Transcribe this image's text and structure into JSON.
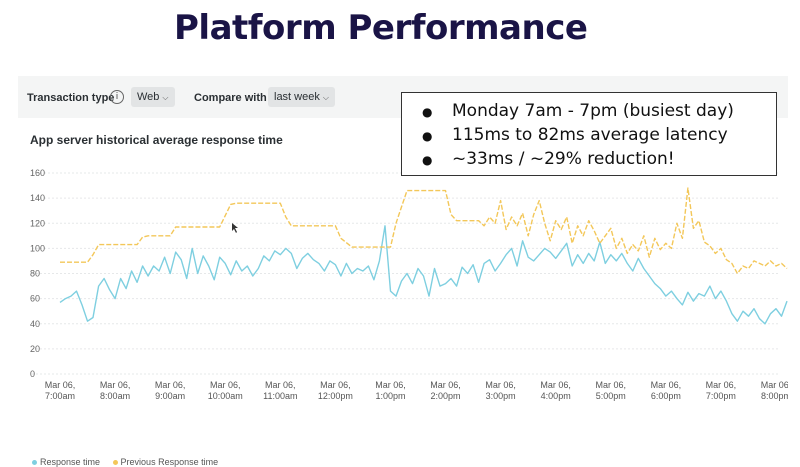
{
  "slide": {
    "title": "Platform Performance"
  },
  "toolbar": {
    "transaction_type_label": "Transaction type",
    "transaction_type_value": "Web",
    "compare_with_label": "Compare with",
    "compare_with_value": "last week"
  },
  "callout": {
    "bullets": [
      "Monday 7am - 7pm (busiest day)",
      "115ms to 82ms average latency",
      "~33ms / ~29% reduction!"
    ]
  },
  "colors": {
    "response": "#7ecfe0",
    "previous": "#f3c759",
    "title": "#1a1446"
  },
  "chart_data": {
    "type": "line",
    "title": "App server historical average response time",
    "ylim": [
      0,
      160
    ],
    "yticks": [
      0,
      20,
      40,
      60,
      80,
      100,
      120,
      140,
      160
    ],
    "xlim": [
      7.0,
      20.0
    ],
    "xticks": [
      {
        "x": 7,
        "line1": "Mar 06,",
        "line2": "7:00am"
      },
      {
        "x": 8,
        "line1": "Mar 06,",
        "line2": "8:00am"
      },
      {
        "x": 9,
        "line1": "Mar 06,",
        "line2": "9:00am"
      },
      {
        "x": 10,
        "line1": "Mar 06,",
        "line2": "10:00am"
      },
      {
        "x": 11,
        "line1": "Mar 06,",
        "line2": "11:00am"
      },
      {
        "x": 12,
        "line1": "Mar 06,",
        "line2": "12:00pm"
      },
      {
        "x": 13,
        "line1": "Mar 06,",
        "line2": "1:00pm"
      },
      {
        "x": 14,
        "line1": "Mar 06,",
        "line2": "2:00pm"
      },
      {
        "x": 15,
        "line1": "Mar 06,",
        "line2": "3:00pm"
      },
      {
        "x": 16,
        "line1": "Mar 06,",
        "line2": "4:00pm"
      },
      {
        "x": 17,
        "line1": "Mar 06,",
        "line2": "5:00pm"
      },
      {
        "x": 18,
        "line1": "Mar 06,",
        "line2": "6:00pm"
      },
      {
        "x": 19,
        "line1": "Mar 06,",
        "line2": "7:00pm"
      },
      {
        "x": 20,
        "line1": "Mar 06,",
        "line2": "8:00pm"
      }
    ],
    "grid": true,
    "legend_position": "bottom-left",
    "series": [
      {
        "name": "Response time",
        "points": [
          [
            7.0,
            57
          ],
          [
            7.1,
            60
          ],
          [
            7.2,
            62
          ],
          [
            7.3,
            66
          ],
          [
            7.4,
            55
          ],
          [
            7.5,
            42
          ],
          [
            7.6,
            45
          ],
          [
            7.7,
            70
          ],
          [
            7.8,
            76
          ],
          [
            7.9,
            67
          ],
          [
            8.0,
            60
          ],
          [
            8.1,
            76
          ],
          [
            8.2,
            68
          ],
          [
            8.3,
            82
          ],
          [
            8.4,
            73
          ],
          [
            8.5,
            86
          ],
          [
            8.6,
            78
          ],
          [
            8.7,
            86
          ],
          [
            8.8,
            82
          ],
          [
            8.9,
            93
          ],
          [
            9.0,
            80
          ],
          [
            9.1,
            97
          ],
          [
            9.2,
            91
          ],
          [
            9.3,
            76
          ],
          [
            9.4,
            100
          ],
          [
            9.5,
            80
          ],
          [
            9.6,
            94
          ],
          [
            9.7,
            86
          ],
          [
            9.8,
            75
          ],
          [
            9.9,
            93
          ],
          [
            10.0,
            88
          ],
          [
            10.1,
            79
          ],
          [
            10.2,
            90
          ],
          [
            10.3,
            82
          ],
          [
            10.4,
            86
          ],
          [
            10.5,
            78
          ],
          [
            10.6,
            84
          ],
          [
            10.7,
            94
          ],
          [
            10.8,
            90
          ],
          [
            10.9,
            98
          ],
          [
            11.0,
            95
          ],
          [
            11.1,
            100
          ],
          [
            11.2,
            96
          ],
          [
            11.3,
            84
          ],
          [
            11.4,
            92
          ],
          [
            11.5,
            96
          ],
          [
            11.6,
            91
          ],
          [
            11.7,
            88
          ],
          [
            11.8,
            82
          ],
          [
            11.9,
            90
          ],
          [
            12.0,
            87
          ],
          [
            12.1,
            78
          ],
          [
            12.2,
            88
          ],
          [
            12.3,
            80
          ],
          [
            12.4,
            84
          ],
          [
            12.5,
            82
          ],
          [
            12.6,
            86
          ],
          [
            12.7,
            75
          ],
          [
            12.8,
            90
          ],
          [
            12.9,
            118
          ],
          [
            13.0,
            66
          ],
          [
            13.1,
            62
          ],
          [
            13.2,
            74
          ],
          [
            13.3,
            80
          ],
          [
            13.4,
            72
          ],
          [
            13.5,
            84
          ],
          [
            13.6,
            78
          ],
          [
            13.7,
            62
          ],
          [
            13.8,
            84
          ],
          [
            13.9,
            70
          ],
          [
            14.0,
            72
          ],
          [
            14.1,
            76
          ],
          [
            14.2,
            70
          ],
          [
            14.3,
            85
          ],
          [
            14.4,
            80
          ],
          [
            14.5,
            87
          ],
          [
            14.6,
            73
          ],
          [
            14.7,
            88
          ],
          [
            14.8,
            91
          ],
          [
            14.9,
            82
          ],
          [
            15.0,
            88
          ],
          [
            15.1,
            95
          ],
          [
            15.2,
            100
          ],
          [
            15.3,
            86
          ],
          [
            15.4,
            106
          ],
          [
            15.5,
            93
          ],
          [
            15.6,
            90
          ],
          [
            15.7,
            95
          ],
          [
            15.8,
            100
          ],
          [
            15.9,
            97
          ],
          [
            16.0,
            92
          ],
          [
            16.1,
            98
          ],
          [
            16.2,
            104
          ],
          [
            16.3,
            86
          ],
          [
            16.4,
            95
          ],
          [
            16.5,
            88
          ],
          [
            16.6,
            96
          ],
          [
            16.7,
            90
          ],
          [
            16.8,
            105
          ],
          [
            16.9,
            88
          ],
          [
            17.0,
            95
          ],
          [
            17.1,
            90
          ],
          [
            17.2,
            96
          ],
          [
            17.3,
            88
          ],
          [
            17.4,
            82
          ],
          [
            17.5,
            92
          ],
          [
            17.6,
            84
          ],
          [
            17.7,
            78
          ],
          [
            17.8,
            72
          ],
          [
            17.9,
            68
          ],
          [
            18.0,
            62
          ],
          [
            18.1,
            66
          ],
          [
            18.2,
            60
          ],
          [
            18.3,
            55
          ],
          [
            18.4,
            65
          ],
          [
            18.5,
            58
          ],
          [
            18.6,
            64
          ],
          [
            18.7,
            62
          ],
          [
            18.8,
            70
          ],
          [
            18.9,
            60
          ],
          [
            19.0,
            66
          ],
          [
            19.1,
            58
          ],
          [
            19.2,
            48
          ],
          [
            19.3,
            42
          ],
          [
            19.4,
            50
          ],
          [
            19.5,
            46
          ],
          [
            19.6,
            52
          ],
          [
            19.7,
            44
          ],
          [
            19.8,
            40
          ],
          [
            19.9,
            48
          ],
          [
            20.0,
            52
          ],
          [
            20.1,
            46
          ],
          [
            20.2,
            58
          ]
        ]
      },
      {
        "name": "Previous Response time",
        "points": [
          [
            7.0,
            89
          ],
          [
            7.5,
            89
          ],
          [
            7.6,
            95
          ],
          [
            7.7,
            103
          ],
          [
            8.4,
            103
          ],
          [
            8.5,
            109
          ],
          [
            8.6,
            110
          ],
          [
            9.0,
            110
          ],
          [
            9.1,
            117
          ],
          [
            9.9,
            117
          ],
          [
            10.0,
            126
          ],
          [
            10.1,
            135
          ],
          [
            10.2,
            136
          ],
          [
            11.0,
            136
          ],
          [
            11.1,
            125
          ],
          [
            11.2,
            118
          ],
          [
            12.0,
            118
          ],
          [
            12.1,
            108
          ],
          [
            12.3,
            101
          ],
          [
            13.0,
            101
          ],
          [
            13.1,
            120
          ],
          [
            13.3,
            146
          ],
          [
            14.0,
            146
          ],
          [
            14.1,
            127
          ],
          [
            14.2,
            122
          ],
          [
            14.6,
            122
          ],
          [
            14.7,
            118
          ],
          [
            14.8,
            125
          ],
          [
            14.9,
            120
          ],
          [
            15.0,
            138
          ],
          [
            15.1,
            115
          ],
          [
            15.2,
            125
          ],
          [
            15.3,
            118
          ],
          [
            15.4,
            128
          ],
          [
            15.5,
            110
          ],
          [
            15.6,
            127
          ],
          [
            15.7,
            138
          ],
          [
            15.8,
            120
          ],
          [
            15.9,
            106
          ],
          [
            16.0,
            122
          ],
          [
            16.1,
            115
          ],
          [
            16.2,
            125
          ],
          [
            16.3,
            104
          ],
          [
            16.4,
            118
          ],
          [
            16.5,
            110
          ],
          [
            16.6,
            122
          ],
          [
            16.7,
            114
          ],
          [
            16.8,
            104
          ],
          [
            16.9,
            110
          ],
          [
            17.0,
            116
          ],
          [
            17.1,
            100
          ],
          [
            17.2,
            108
          ],
          [
            17.3,
            96
          ],
          [
            17.4,
            103
          ],
          [
            17.5,
            98
          ],
          [
            17.6,
            110
          ],
          [
            17.7,
            93
          ],
          [
            17.8,
            108
          ],
          [
            17.9,
            99
          ],
          [
            18.0,
            104
          ],
          [
            18.1,
            100
          ],
          [
            18.2,
            120
          ],
          [
            18.3,
            108
          ],
          [
            18.4,
            148
          ],
          [
            18.5,
            116
          ],
          [
            18.6,
            122
          ],
          [
            18.7,
            105
          ],
          [
            18.8,
            102
          ],
          [
            18.9,
            96
          ],
          [
            19.0,
            100
          ],
          [
            19.1,
            91
          ],
          [
            19.2,
            88
          ],
          [
            19.3,
            80
          ],
          [
            19.4,
            86
          ],
          [
            19.5,
            84
          ],
          [
            19.6,
            90
          ],
          [
            19.7,
            88
          ],
          [
            19.8,
            86
          ],
          [
            19.9,
            90
          ],
          [
            20.0,
            86
          ],
          [
            20.1,
            88
          ],
          [
            20.2,
            84
          ]
        ]
      }
    ]
  }
}
